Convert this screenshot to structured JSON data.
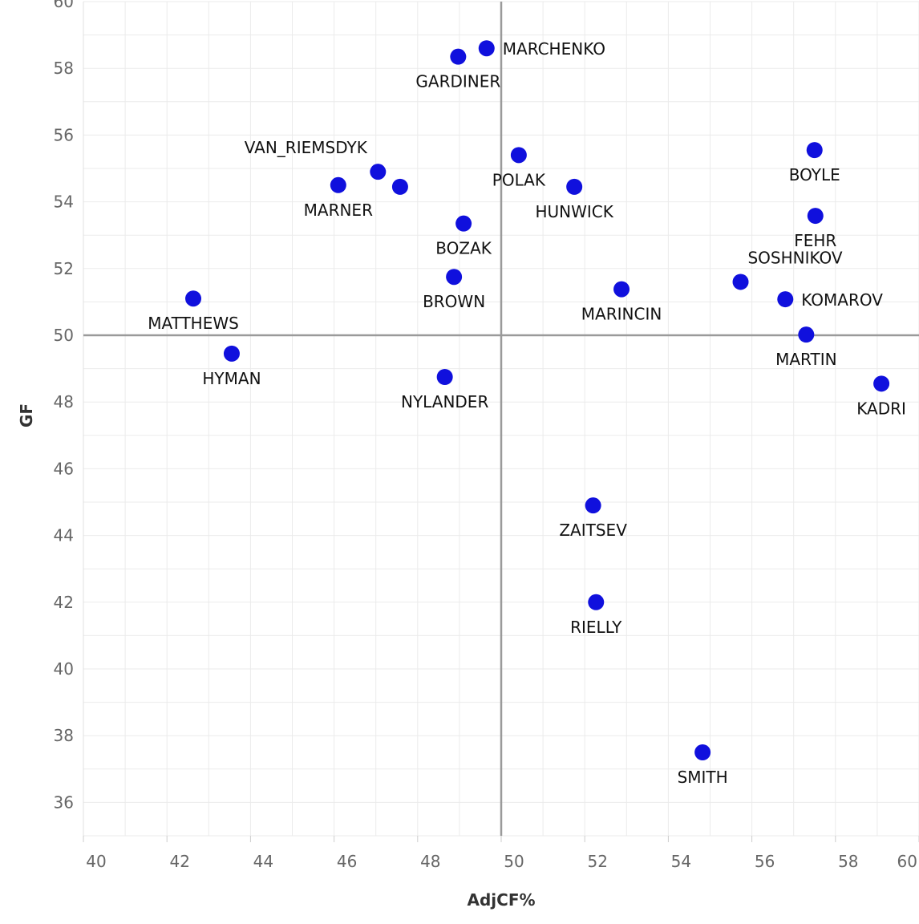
{
  "chart_data": {
    "type": "scatter",
    "title": "",
    "xlabel": "AdjCF%",
    "ylabel": "GF",
    "xlim": [
      40,
      60
    ],
    "ylim": [
      35,
      60
    ],
    "x_ticks": [
      40,
      42,
      44,
      46,
      48,
      50,
      52,
      54,
      56,
      58,
      60
    ],
    "y_ticks": [
      36,
      38,
      40,
      42,
      44,
      46,
      48,
      50,
      52,
      54,
      56,
      58,
      60
    ],
    "reference_lines": {
      "x": 50,
      "y": 50
    },
    "point_color": "#1010dd",
    "grid": true,
    "points": [
      {
        "label": "MARCHENKO",
        "x": 49.65,
        "y": 58.6,
        "label_pos": "right"
      },
      {
        "label": "GARDINER",
        "x": 48.97,
        "y": 58.35,
        "label_pos": "below"
      },
      {
        "label": "VAN_RIEMSDYK",
        "x": 47.05,
        "y": 54.9,
        "label_pos": "above-left"
      },
      {
        "label": "",
        "x": 47.58,
        "y": 54.45,
        "label_pos": "none"
      },
      {
        "label": "MARNER",
        "x": 46.1,
        "y": 54.5,
        "label_pos": "below"
      },
      {
        "label": "POLAK",
        "x": 50.42,
        "y": 55.4,
        "label_pos": "below"
      },
      {
        "label": "HUNWICK",
        "x": 51.75,
        "y": 54.45,
        "label_pos": "below"
      },
      {
        "label": "BOYLE",
        "x": 57.5,
        "y": 55.55,
        "label_pos": "below"
      },
      {
        "label": "BOZAK",
        "x": 49.1,
        "y": 53.35,
        "label_pos": "below"
      },
      {
        "label": "FEHR",
        "x": 57.52,
        "y": 53.58,
        "label_pos": "below"
      },
      {
        "label": "SOSHNIKOV",
        "x": 55.73,
        "y": 51.6,
        "label_pos": "above-right"
      },
      {
        "label": "BROWN",
        "x": 48.87,
        "y": 51.75,
        "label_pos": "below"
      },
      {
        "label": "MARINCIN",
        "x": 52.88,
        "y": 51.38,
        "label_pos": "below"
      },
      {
        "label": "KOMAROV",
        "x": 56.8,
        "y": 51.08,
        "label_pos": "right"
      },
      {
        "label": "MATTHEWS",
        "x": 42.63,
        "y": 51.1,
        "label_pos": "below"
      },
      {
        "label": "MARTIN",
        "x": 57.3,
        "y": 50.02,
        "label_pos": "below"
      },
      {
        "label": "HYMAN",
        "x": 43.55,
        "y": 49.45,
        "label_pos": "below"
      },
      {
        "label": "NYLANDER",
        "x": 48.65,
        "y": 48.75,
        "label_pos": "below"
      },
      {
        "label": "KADRI",
        "x": 59.1,
        "y": 48.55,
        "label_pos": "below"
      },
      {
        "label": "ZAITSEV",
        "x": 52.2,
        "y": 44.9,
        "label_pos": "below"
      },
      {
        "label": "RIELLY",
        "x": 52.27,
        "y": 42.0,
        "label_pos": "below"
      },
      {
        "label": "SMITH",
        "x": 54.82,
        "y": 37.5,
        "label_pos": "below"
      }
    ]
  }
}
